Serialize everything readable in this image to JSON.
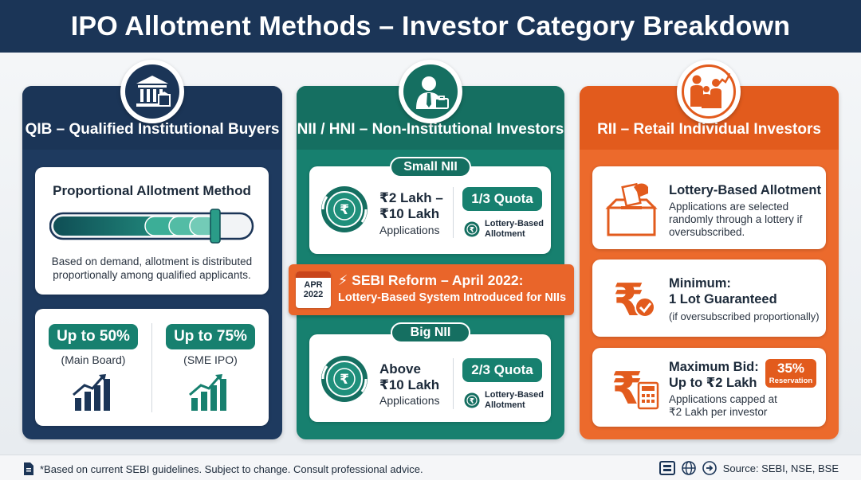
{
  "header": {
    "title": "IPO Allotment Methods – Investor Category Breakdown"
  },
  "colors": {
    "navy": "#1e3a5f",
    "teal": "#17806f",
    "orange": "#ec6a2c"
  },
  "qib": {
    "icon": "bank-icon",
    "title": "QIB – Qualified Institutional Buyers",
    "method_title": "Proportional Allotment Method",
    "method_desc": "Based on demand, allotment is distributed proportionally among qualified applicants.",
    "quotas": [
      {
        "value": "Up to 50%",
        "label": "(Main Board)",
        "icon": "growth-chart-icon"
      },
      {
        "value": "Up to 75%",
        "label": "(SME IPO)",
        "icon": "growth-chart-icon"
      }
    ]
  },
  "nii": {
    "icon": "businessman-icon",
    "title": "NII / HNI – Non-Institutional Investors",
    "small": {
      "tag": "Small NII",
      "amount_line1": "₹2 Lakh –",
      "amount_line2": "₹10 Lakh",
      "applications": "Applications",
      "quota": "1/3 Quota",
      "method_line1": "Lottery-Based",
      "method_line2": "Allotment"
    },
    "reform": {
      "month": "APR",
      "year": "2022",
      "line1": "⚡ SEBI Reform – April 2022:",
      "line2": "Lottery-Based System Introduced for NIIs"
    },
    "big": {
      "tag": "Big NII",
      "amount_line1": "Above",
      "amount_line2": "₹10 Lakh",
      "applications": "Applications",
      "quota": "2/3 Quota",
      "method_line1": "Lottery-Based",
      "method_line2": "Allotment"
    }
  },
  "rii": {
    "icon": "family-growth-icon",
    "title": "RII – Retail Individual Investors",
    "lottery": {
      "title": "Lottery-Based Allotment",
      "desc1": "Applications are selected",
      "desc2": "randomly through a lottery if",
      "desc3": "oversubscribed."
    },
    "minimum": {
      "title1": "Minimum:",
      "title2": "1 Lot Guaranteed",
      "desc": "(if oversubscribed proportionally)"
    },
    "maximum": {
      "title1": "Maximum Bid:",
      "title2": "Up to ₹2 Lakh",
      "desc1": "Applications capped at",
      "desc2": "₹2 Lakh per investor",
      "badge_pct": "35%",
      "badge_label": "Reservation"
    }
  },
  "footer": {
    "disclaimer": "*Based on current SEBI guidelines. Subject to change. Consult professional advice.",
    "source": "Source: SEBI, NSE, BSE"
  }
}
